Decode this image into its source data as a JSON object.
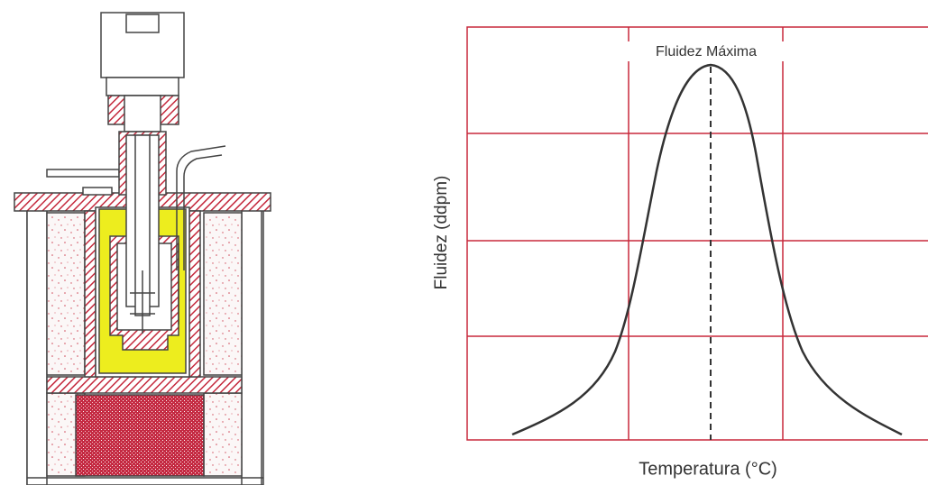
{
  "chart": {
    "peak_label": "Fluidez Máxima",
    "y_label": "Fluidez (ddpm)",
    "x_label": "Temperatura (°C)"
  }
}
